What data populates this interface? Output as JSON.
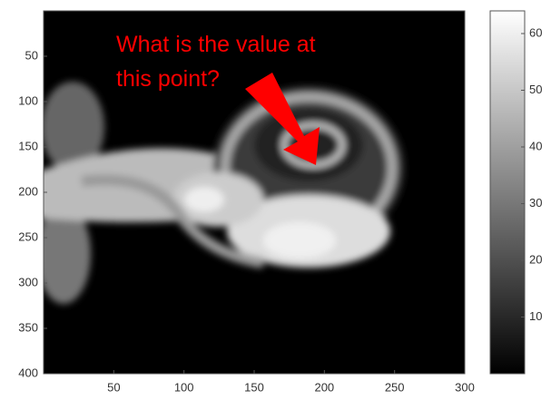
{
  "chart_data": {
    "type": "image",
    "annotation": "What is the value at this point?",
    "annotation_color": "#ff0000",
    "xlim": [
      0,
      300
    ],
    "xticks": [
      50,
      100,
      150,
      200,
      250,
      300
    ],
    "ylim": [
      400,
      0
    ],
    "yticks": [
      50,
      100,
      150,
      200,
      250,
      300,
      350,
      400
    ],
    "colormap": "gray",
    "clim": [
      0,
      64
    ],
    "cticks": [
      10,
      20,
      30,
      40,
      50,
      60
    ]
  }
}
